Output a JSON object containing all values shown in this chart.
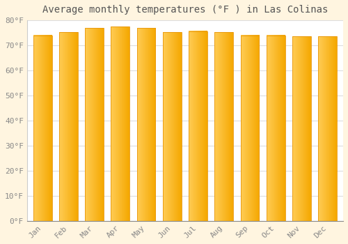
{
  "title": "Average monthly temperatures (°F ) in Las Colinas",
  "months": [
    "Jan",
    "Feb",
    "Mar",
    "Apr",
    "May",
    "Jun",
    "Jul",
    "Aug",
    "Sep",
    "Oct",
    "Nov",
    "Dec"
  ],
  "values": [
    74.0,
    75.2,
    77.0,
    77.5,
    77.0,
    75.2,
    75.7,
    75.2,
    74.0,
    74.0,
    73.5,
    73.5
  ],
  "bar_color_left": "#FFCC55",
  "bar_color_right": "#F5A800",
  "bar_edge_color": "#E8960A",
  "plot_bg_color": "#FFFFFF",
  "outer_bg_color": "#FFF5E0",
  "grid_color": "#DDDDDD",
  "tick_label_color": "#888888",
  "title_color": "#555555",
  "ylim": [
    0,
    80
  ],
  "ytick_step": 10,
  "bar_width": 0.72,
  "title_fontsize": 10,
  "tick_fontsize": 8
}
